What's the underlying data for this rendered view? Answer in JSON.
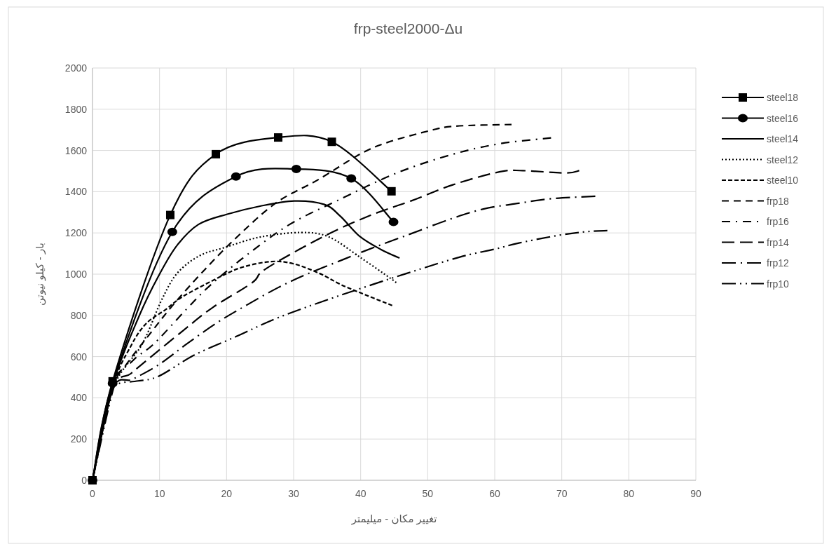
{
  "chart_data": {
    "type": "line",
    "title": "frp-steel2000-Δu",
    "xlabel": "تغییر مکان - میلیمتر",
    "ylabel": "بار - کیلو نیوتن",
    "xlim": [
      0,
      90
    ],
    "xticks": [
      0,
      10,
      20,
      30,
      40,
      50,
      60,
      70,
      80,
      90
    ],
    "ylim": [
      0,
      2000
    ],
    "yticks": [
      0,
      200,
      400,
      600,
      800,
      1000,
      1200,
      1400,
      1600,
      1800,
      2000
    ],
    "grid": true,
    "legend": "right",
    "series": [
      {
        "name": "steel18",
        "color": "#000000",
        "line_style": "solid",
        "marker": "square",
        "x": [
          0,
          3,
          11.6,
          18.4,
          27.7,
          35.7,
          44.6
        ],
        "values": [
          0,
          480,
          1287,
          1582,
          1663,
          1642,
          1402
        ]
      },
      {
        "name": "steel16",
        "color": "#000000",
        "line_style": "solid",
        "marker": "circle",
        "x": [
          0,
          3,
          11.9,
          21.4,
          30.4,
          38.6,
          44.9
        ],
        "values": [
          0,
          470,
          1205,
          1474,
          1510,
          1464,
          1253
        ]
      },
      {
        "name": "steel14",
        "color": "#000000",
        "line_style": "solid",
        "marker": "none",
        "x": [
          0,
          3,
          7,
          10,
          12.6,
          15.8,
          20,
          25,
          30.1,
          34.6,
          37,
          39.8,
          43,
          45.8
        ],
        "values": [
          0,
          460,
          800,
          1000,
          1139,
          1241,
          1290,
          1330,
          1355,
          1338,
          1280,
          1185,
          1120,
          1078
        ]
      },
      {
        "name": "steel12",
        "color": "#000000",
        "line_style": "dotted",
        "marker": "none",
        "x": [
          0,
          3,
          7.4,
          10.2,
          12.6,
          16,
          19.7,
          25,
          31.1,
          35.3,
          40,
          44.4,
          45.3
        ],
        "values": [
          0,
          440,
          660,
          867,
          1003,
          1090,
          1129,
          1180,
          1202,
          1180,
          1080,
          981,
          959
        ]
      },
      {
        "name": "steel10",
        "color": "#000000",
        "line_style": "dashed",
        "marker": "none",
        "x": [
          0,
          3,
          5.7,
          8,
          10.9,
          13.4,
          18,
          22,
          26.6,
          30,
          33.9,
          37,
          40.6,
          44.7
        ],
        "values": [
          0,
          450,
          650,
          760,
          828,
          890,
          970,
          1030,
          1061,
          1050,
          1003,
          950,
          901,
          848
        ]
      },
      {
        "name": "frp18",
        "color": "#000000",
        "line_style": "medium_dash",
        "marker": "none",
        "x": [
          0,
          3,
          5,
          8.5,
          12,
          16.2,
          21,
          27.3,
          33.6,
          39.9,
          44,
          50.3,
          54.1,
          62.5
        ],
        "values": [
          0,
          450,
          560,
          708,
          850,
          1003,
          1163,
          1344,
          1457,
          1582,
          1639,
          1696,
          1718,
          1726
        ]
      },
      {
        "name": "frp16",
        "color": "#000000",
        "line_style": "dash_dot",
        "marker": "none",
        "x": [
          0,
          3,
          6,
          9.2,
          14.1,
          17.6,
          23.1,
          29.4,
          36.4,
          45.4,
          53.8,
          60.8,
          68.4
        ],
        "values": [
          0,
          450,
          580,
          663,
          833,
          947,
          1095,
          1241,
          1355,
          1491,
          1582,
          1633,
          1661
        ]
      },
      {
        "name": "frp14",
        "color": "#000000",
        "line_style": "long_dash",
        "marker": "none",
        "x": [
          0,
          3,
          5.7,
          8.2,
          13.7,
          18,
          23.8,
          25.9,
          34.6,
          41.6,
          47.5,
          53.8,
          60.8,
          64.2,
          70.5,
          72.6
        ],
        "values": [
          0,
          440,
          517,
          585,
          731,
          840,
          958,
          1027,
          1185,
          1287,
          1355,
          1434,
          1497,
          1502,
          1491,
          1502
        ]
      },
      {
        "name": "frp12",
        "color": "#000000",
        "line_style": "long_dash_dot",
        "marker": "none",
        "x": [
          0,
          3,
          6,
          9.9,
          14,
          18.6,
          23,
          27.7,
          32,
          37.4,
          42,
          47.5,
          53.1,
          58.3,
          63.6,
          68.4,
          75
        ],
        "values": [
          0,
          440,
          490,
          561,
          660,
          765,
          850,
          935,
          1000,
          1071,
          1130,
          1196,
          1264,
          1316,
          1344,
          1366,
          1378
        ]
      },
      {
        "name": "frp10",
        "color": "#000000",
        "line_style": "long_dash_dot_dot",
        "marker": "none",
        "x": [
          0,
          3,
          4,
          6.8,
          9.9,
          15.1,
          21.4,
          27.7,
          36.4,
          46.8,
          54.8,
          60.1,
          63.6,
          69.8,
          74,
          76.8
        ],
        "values": [
          0,
          430,
          470,
          482,
          505,
          606,
          697,
          789,
          891,
          1003,
          1083,
          1122,
          1151,
          1190,
          1207,
          1211
        ]
      }
    ]
  }
}
